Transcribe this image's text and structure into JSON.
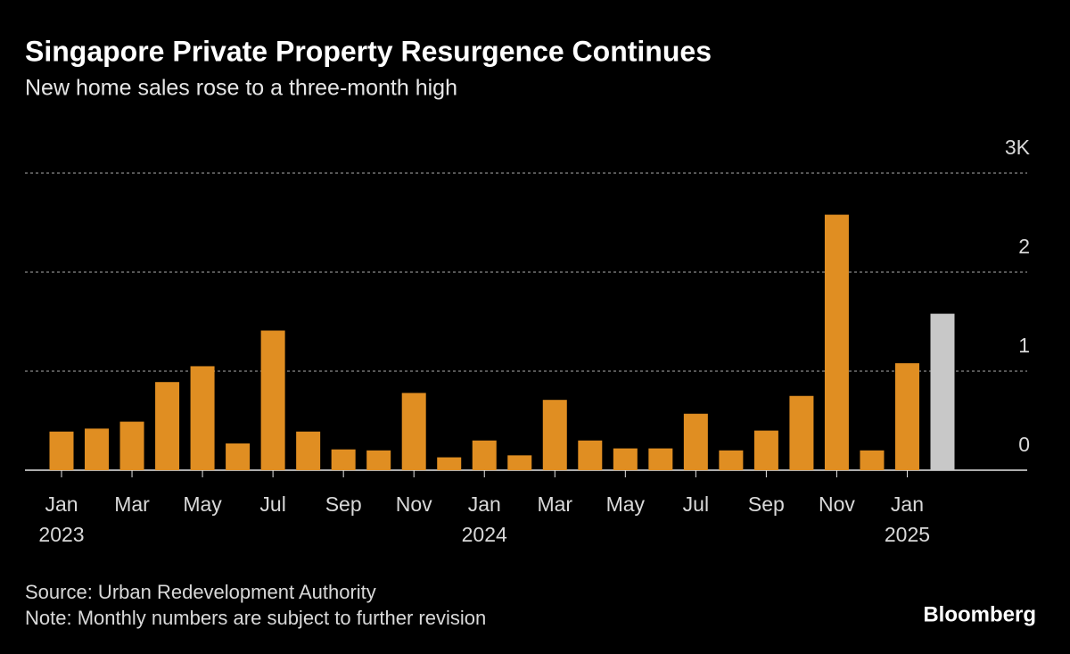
{
  "chart_data": {
    "type": "bar",
    "title": "Singapore Private Property Resurgence Continues",
    "subtitle": "New home sales rose to a three-month high",
    "categories": [
      "Jan",
      null,
      "Mar",
      null,
      "May",
      null,
      "Jul",
      null,
      "Sep",
      null,
      "Nov",
      null,
      "Jan",
      null,
      "Mar",
      null,
      "May",
      null,
      "Jul",
      null,
      "Sep",
      null,
      "Nov",
      null,
      "Jan",
      null
    ],
    "years": [
      "2023",
      null,
      null,
      null,
      null,
      null,
      null,
      null,
      null,
      null,
      null,
      null,
      "2024",
      null,
      null,
      null,
      null,
      null,
      null,
      null,
      null,
      null,
      null,
      null,
      "2025",
      null
    ],
    "values": [
      390,
      420,
      490,
      890,
      1050,
      270,
      1410,
      390,
      210,
      200,
      780,
      130,
      300,
      150,
      710,
      300,
      220,
      220,
      570,
      200,
      400,
      750,
      2580,
      200,
      1080,
      1580
    ],
    "colors": [
      "#e08e22",
      "#e08e22",
      "#e08e22",
      "#e08e22",
      "#e08e22",
      "#e08e22",
      "#e08e22",
      "#e08e22",
      "#e08e22",
      "#e08e22",
      "#e08e22",
      "#e08e22",
      "#e08e22",
      "#e08e22",
      "#e08e22",
      "#e08e22",
      "#e08e22",
      "#e08e22",
      "#e08e22",
      "#e08e22",
      "#e08e22",
      "#e08e22",
      "#e08e22",
      "#e08e22",
      "#e08e22",
      "#c8c8c8"
    ],
    "ylim": [
      0,
      3000
    ],
    "yticks": [
      0,
      {
        "value": 1000,
        "label": "1"
      },
      {
        "value": 2000,
        "label": "2"
      },
      {
        "value": 3000,
        "label": "3K"
      }
    ],
    "grid": true,
    "source": "Source: Urban Redevelopment Authority",
    "note": "Note: Monthly numbers are subject to further revision",
    "brand": "Bloomberg"
  }
}
